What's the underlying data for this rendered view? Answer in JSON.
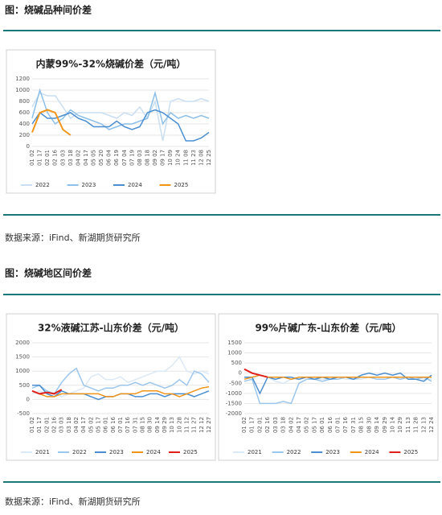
{
  "sections": [
    {
      "title": "图：烧碱品种间价差",
      "source": "数据来源：iFind、新湖期货研究所"
    },
    {
      "title": "图：烧碱地区间价差",
      "source": "数据来源：iFind、新湖期货研究所"
    }
  ],
  "chart_data": [
    {
      "type": "line",
      "title": "内蒙99%-32%烧碱价差（元/吨）",
      "categories": [
        "01 02",
        "01 17",
        "02 01",
        "02 16",
        "03 03",
        "03 18",
        "04 02",
        "04 17",
        "05 05",
        "05 20",
        "06 04",
        "06 19",
        "07 04",
        "07 19",
        "08 03",
        "08 18",
        "09 02",
        "09 17",
        "10 09",
        "10 24",
        "11 08",
        "11 23",
        "12 08",
        "12 25"
      ],
      "ylim": [
        0,
        1200
      ],
      "yticks": [
        0,
        200,
        400,
        600,
        800,
        1000,
        1200
      ],
      "series": [
        {
          "name": "2022",
          "color": "#c9def2",
          "values": [
            700,
            950,
            900,
            900,
            700,
            500,
            600,
            600,
            600,
            600,
            550,
            500,
            600,
            550,
            700,
            500,
            800,
            100,
            800,
            850,
            800,
            800,
            850,
            800
          ]
        },
        {
          "name": "2023",
          "color": "#8dbfe8",
          "values": [
            500,
            1000,
            600,
            400,
            500,
            650,
            550,
            500,
            450,
            400,
            300,
            350,
            400,
            400,
            450,
            500,
            950,
            400,
            600,
            500,
            550,
            500,
            550,
            500
          ]
        },
        {
          "name": "2024",
          "color": "#4a8ed0",
          "values": [
            400,
            600,
            500,
            500,
            550,
            600,
            500,
            450,
            350,
            350,
            350,
            450,
            350,
            300,
            350,
            600,
            650,
            600,
            500,
            400,
            100,
            100,
            150,
            250
          ]
        },
        {
          "name": "2025",
          "color": "#f0941a",
          "values": [
            250,
            600,
            650,
            600,
            300,
            200,
            null,
            null,
            null,
            null,
            null,
            null,
            null,
            null,
            null,
            null,
            null,
            null,
            null,
            null,
            null,
            null,
            null,
            null
          ]
        }
      ]
    },
    {
      "type": "line",
      "title": "32%液碱江苏-山东价差（元/吨）",
      "categories": [
        "01 02",
        "01 17",
        "02 01",
        "02 16",
        "03 03",
        "03 18",
        "04 02",
        "04 17",
        "05 02",
        "05 17",
        "06 01",
        "06 16",
        "07 01",
        "07 16",
        "07 31",
        "08 15",
        "08 30",
        "09 14",
        "09 29",
        "10 13",
        "10 28",
        "11 12",
        "11 27",
        "12 12",
        "12 27"
      ],
      "ylim": [
        -500,
        2000
      ],
      "yticks": [
        -500,
        0,
        500,
        1000,
        1500,
        2000
      ],
      "series": [
        {
          "name": "2021",
          "color": "#dbe8f5",
          "values": [
            200,
            300,
            200,
            250,
            100,
            200,
            300,
            400,
            800,
            900,
            700,
            700,
            800,
            600,
            700,
            800,
            900,
            1000,
            1000,
            1200,
            1500,
            1000,
            900,
            1000,
            900
          ]
        },
        {
          "name": "2022",
          "color": "#9cc6ec",
          "values": [
            400,
            500,
            300,
            200,
            600,
            900,
            1100,
            500,
            400,
            300,
            400,
            400,
            500,
            500,
            600,
            500,
            600,
            500,
            400,
            500,
            700,
            500,
            1000,
            900,
            600
          ]
        },
        {
          "name": "2023",
          "color": "#4a8ed0",
          "values": [
            500,
            500,
            200,
            100,
            300,
            200,
            200,
            200,
            100,
            0,
            100,
            100,
            200,
            200,
            100,
            100,
            200,
            200,
            100,
            200,
            200,
            200,
            100,
            200,
            300
          ]
        },
        {
          "name": "2024",
          "color": "#f0941a",
          "values": [
            300,
            200,
            100,
            100,
            200,
            200,
            200,
            200,
            200,
            200,
            100,
            100,
            200,
            200,
            200,
            300,
            300,
            300,
            200,
            200,
            100,
            200,
            300,
            400,
            450
          ]
        },
        {
          "name": "2025",
          "color": "#e0201b",
          "values": [
            300,
            200,
            250,
            200,
            350,
            null,
            null,
            null,
            null,
            null,
            null,
            null,
            null,
            null,
            null,
            null,
            null,
            null,
            null,
            null,
            null,
            null,
            null,
            null,
            null
          ]
        }
      ]
    },
    {
      "type": "line",
      "title": "99%片碱广东-山东价差（元/吨）",
      "categories": [
        "01 02",
        "01 17",
        "02 01",
        "02 16",
        "03 03",
        "03 18",
        "04 02",
        "04 17",
        "05 02",
        "05 17",
        "06 01",
        "06 16",
        "07 01",
        "07 16",
        "07 31",
        "08 15",
        "08 30",
        "09 14",
        "09 29",
        "10 14",
        "10 29",
        "11 13",
        "11 28",
        "12 13",
        "12 24"
      ],
      "ylim": [
        -2000,
        1500
      ],
      "yticks": [
        -2000,
        -1500,
        -1000,
        -500,
        0,
        500,
        1000,
        1500
      ],
      "series": [
        {
          "name": "2021",
          "color": "#dbe8f5",
          "values": [
            -200,
            -300,
            -100,
            -200,
            -400,
            -500,
            -300,
            -300,
            -200,
            -300,
            -300,
            -300,
            -200,
            -300,
            -300,
            -300,
            -200,
            -300,
            -300,
            -200,
            -300,
            -200,
            -200,
            -300,
            -300
          ]
        },
        {
          "name": "2022",
          "color": "#9cc6ec",
          "values": [
            -400,
            -300,
            -1500,
            -1500,
            -1500,
            -1400,
            -1500,
            -500,
            -300,
            -300,
            -400,
            -300,
            -300,
            -200,
            -300,
            -200,
            -200,
            -300,
            -300,
            -200,
            -300,
            -200,
            -300,
            -200,
            -400
          ]
        },
        {
          "name": "2023",
          "color": "#4a8ed0",
          "values": [
            -200,
            -200,
            -1000,
            -200,
            -300,
            -200,
            -200,
            -300,
            -200,
            -300,
            -200,
            -300,
            -200,
            -200,
            -300,
            -100,
            0,
            -100,
            0,
            -100,
            0,
            -300,
            -300,
            -400,
            -100
          ]
        },
        {
          "name": "2024",
          "color": "#f0941a",
          "values": [
            -300,
            -200,
            -100,
            -200,
            -200,
            -200,
            -300,
            -200,
            -200,
            -200,
            -200,
            -200,
            -200,
            -200,
            -200,
            -200,
            -200,
            -200,
            -200,
            -200,
            -200,
            -200,
            -200,
            -200,
            -200
          ]
        },
        {
          "name": "2025",
          "color": "#e0201b",
          "values": [
            200,
            0,
            -100,
            -200,
            null,
            null,
            null,
            null,
            null,
            null,
            null,
            null,
            null,
            null,
            null,
            null,
            null,
            null,
            null,
            null,
            null,
            null,
            null,
            null,
            null
          ]
        }
      ]
    }
  ]
}
